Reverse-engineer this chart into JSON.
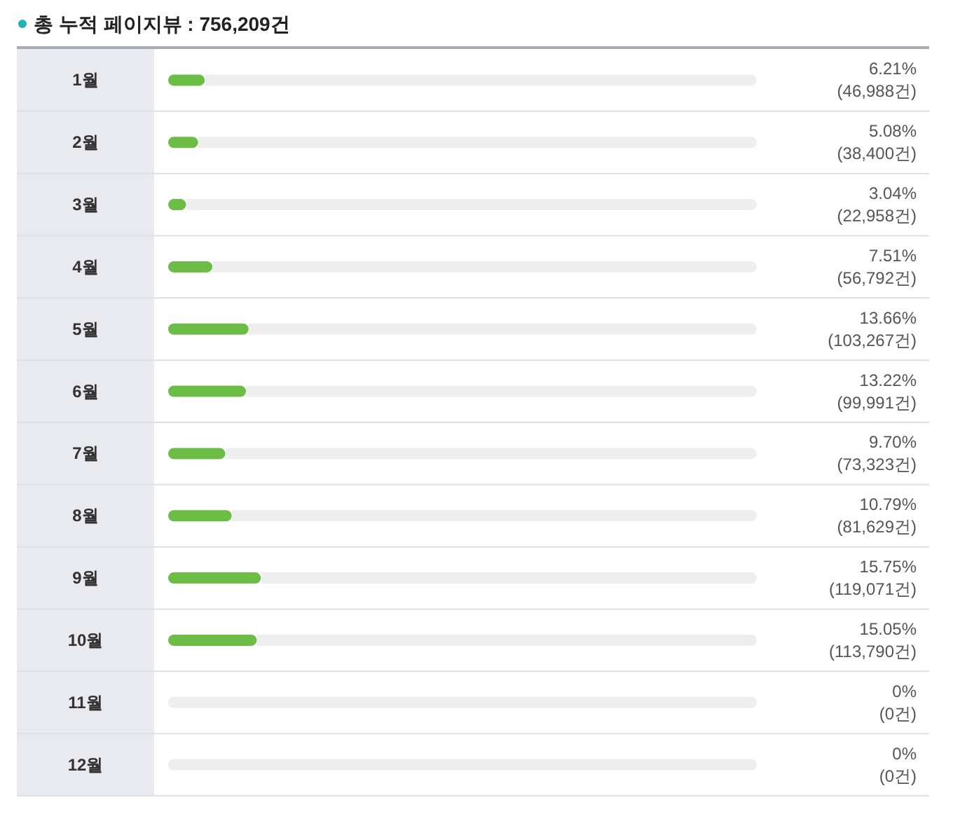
{
  "chart_data": {
    "type": "bar",
    "orientation": "horizontal",
    "stacked": true,
    "title": "총 누적 페이지뷰 : 756,209건",
    "categories": [
      "1월",
      "2월",
      "3월",
      "4월",
      "5월",
      "6월",
      "7월",
      "8월",
      "9월",
      "10월",
      "11월",
      "12월"
    ],
    "series": [
      {
        "color": "#6cbd45",
        "values": [
          6.21,
          5.08,
          3.04,
          7.51,
          13.66,
          13.22,
          9.7,
          10.79,
          15.75,
          15.05,
          0,
          0
        ],
        "value_labels": [
          "6.21%\n(46,988건)",
          "5.08%\n(38,400건)",
          "3.04%\n(22,958건)",
          "7.51%\n(56,792건)",
          "13.66%\n(103,267건)",
          "13.22%\n(99,991건)",
          "9.70%\n(73,323건)",
          "10.79%\n(81,629건)",
          "15.75%\n(119,071건)",
          "15.05%\n(113,790건)",
          "0%\n(0건)",
          "0%\n(0건)"
        ]
      },
      {
        "color": "#eeeeee",
        "values": [
          93.79,
          94.92,
          96.96,
          92.49,
          86.34,
          86.78,
          90.3,
          89.21,
          84.25,
          84.95,
          100,
          100
        ]
      }
    ],
    "xlim": [
      0,
      100
    ],
    "tick_labels": "y"
  }
}
